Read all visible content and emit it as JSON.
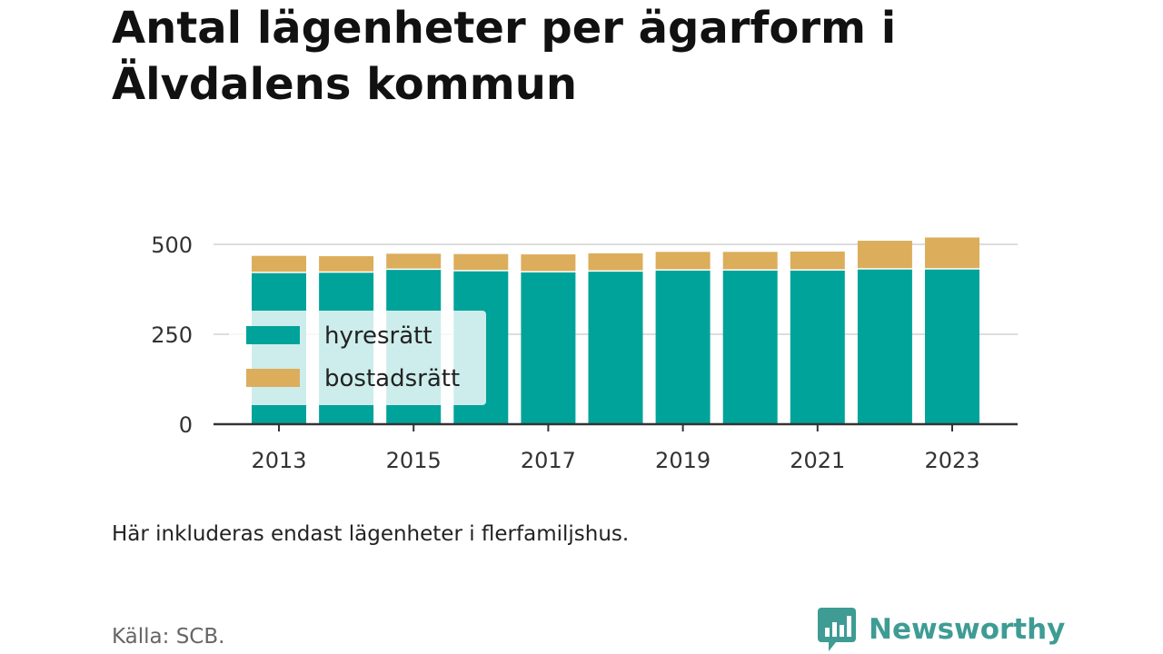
{
  "title": "Antal lägenheter per ägarform i Älvdalens kommun",
  "note": "Här inkluderas endast lägenheter i flerfamiljshus.",
  "source": "Källa: SCB.",
  "brand": {
    "name": "Newsworthy",
    "icon": "speech-bubble-bar-chart-icon"
  },
  "colors": {
    "hyresratt": "#00a39a",
    "bostadsratt": "#dcad5b",
    "grid": "#dddddd",
    "axis": "#333333"
  },
  "chart_data": {
    "type": "bar",
    "stacked": true,
    "categories": [
      "2013",
      "2014",
      "2015",
      "2016",
      "2017",
      "2018",
      "2019",
      "2020",
      "2021",
      "2022",
      "2023"
    ],
    "x_tick_labels": [
      "2013",
      "2015",
      "2017",
      "2019",
      "2021",
      "2023"
    ],
    "series": [
      {
        "name": "hyresrätt",
        "values": [
          420,
          421,
          429,
          425,
          422,
          424,
          427,
          427,
          427,
          430,
          430
        ]
      },
      {
        "name": "bostadsrätt",
        "values": [
          48,
          46,
          45,
          48,
          50,
          51,
          52,
          52,
          53,
          80,
          89
        ]
      }
    ],
    "y_ticks": [
      "0",
      "250",
      "500"
    ],
    "y_tick_values": [
      0,
      250,
      500
    ],
    "ylim": [
      0,
      500
    ],
    "grid": true,
    "legend_position": "inside-left"
  }
}
